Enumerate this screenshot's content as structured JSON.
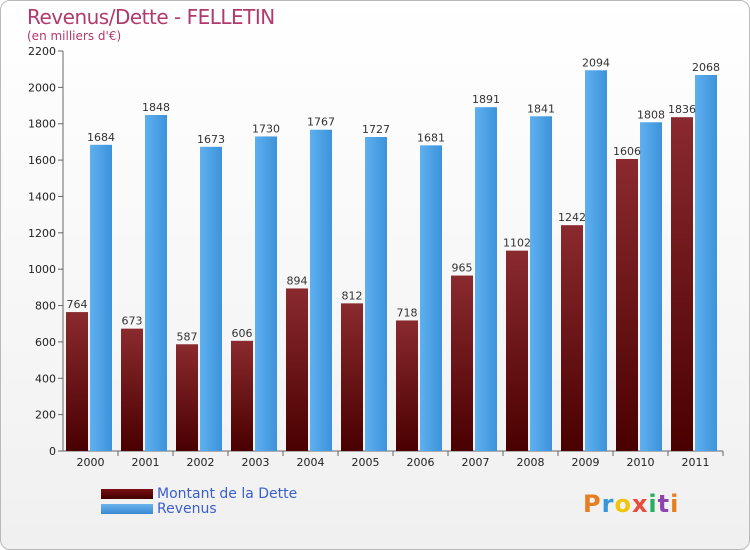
{
  "header": {
    "title": "Revenus/Dette - FELLETIN",
    "subtitle": "(en milliers d'€)"
  },
  "chart_data": {
    "type": "bar",
    "title": "Revenus/Dette - FELLETIN",
    "subtitle": "(en milliers d'€)",
    "xlabel": "",
    "ylabel": "",
    "ylim": [
      0,
      2200
    ],
    "yticks": [
      0,
      200,
      400,
      600,
      800,
      1000,
      1200,
      1400,
      1600,
      1800,
      2000,
      2200
    ],
    "grid": false,
    "categories": [
      "2000",
      "2001",
      "2002",
      "2003",
      "2004",
      "2005",
      "2006",
      "2007",
      "2008",
      "2009",
      "2010",
      "2011"
    ],
    "series": [
      {
        "name": "Montant de la Dette",
        "color": "#6b0a0e",
        "values": [
          764,
          673,
          587,
          606,
          894,
          812,
          718,
          965,
          1102,
          1242,
          1606,
          1836
        ]
      },
      {
        "name": "Revenus",
        "color": "#4aa3e6",
        "values": [
          1684,
          1848,
          1673,
          1730,
          1767,
          1727,
          1681,
          1891,
          1841,
          2094,
          1808,
          2068
        ]
      }
    ],
    "legend_position": "bottom-left"
  },
  "legend": {
    "items": [
      {
        "label": "Montant de la Dette"
      },
      {
        "label": "Revenus"
      }
    ]
  },
  "logo": {
    "letters": [
      "P",
      "r",
      "o",
      "x",
      "i",
      "t",
      "i"
    ],
    "colors": [
      "#e67e22",
      "#3498db",
      "#f1c40f",
      "#e74c3c",
      "#27ae60",
      "#8e44ad",
      "#e67e22"
    ]
  }
}
